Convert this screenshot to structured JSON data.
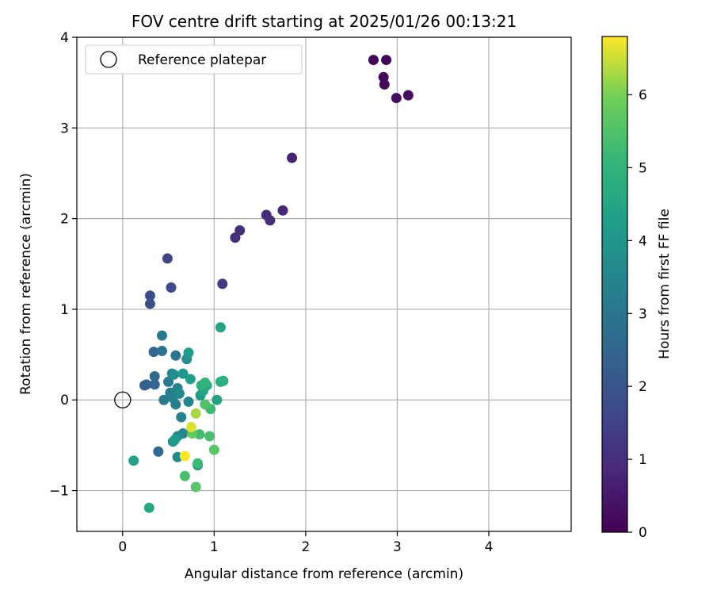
{
  "chart_data": {
    "type": "scatter",
    "title": "FOV centre drift starting at 2025/01/26 00:13:21",
    "xlabel": "Angular distance from reference (arcmin)",
    "ylabel": "Rotation from reference (arcmin)",
    "xlim": [
      -0.5,
      4.9
    ],
    "ylim": [
      -1.45,
      4.0
    ],
    "xticks": [
      0,
      1,
      2,
      3,
      4
    ],
    "yticks": [
      -1,
      0,
      1,
      2,
      3,
      4
    ],
    "xtick_labels": [
      "0",
      "1",
      "2",
      "3",
      "4"
    ],
    "ytick_labels": [
      "−1",
      "0",
      "1",
      "2",
      "3",
      "4"
    ],
    "grid": true,
    "colormap": "viridis",
    "colorbar": {
      "label": "Hours from first FF file",
      "range": [
        0,
        6.8
      ],
      "ticks": [
        0,
        1,
        2,
        3,
        4,
        5,
        6
      ],
      "tick_labels": [
        "0",
        "1",
        "2",
        "3",
        "4",
        "5",
        "6"
      ]
    },
    "legend": {
      "placement": "top-left",
      "entries": [
        {
          "label": "Reference platepar",
          "marker": "hollow-circle"
        }
      ]
    },
    "reference_point": {
      "x": 0,
      "y": 0
    },
    "points": [
      {
        "x": 2.74,
        "y": 3.75,
        "hours": 0.05
      },
      {
        "x": 2.88,
        "y": 3.75,
        "hours": 0.1
      },
      {
        "x": 2.85,
        "y": 3.56,
        "hours": 0.15
      },
      {
        "x": 2.86,
        "y": 3.48,
        "hours": 0.2
      },
      {
        "x": 3.12,
        "y": 3.36,
        "hours": 0.25
      },
      {
        "x": 2.99,
        "y": 3.33,
        "hours": 0.3
      },
      {
        "x": 1.85,
        "y": 2.67,
        "hours": 0.75
      },
      {
        "x": 1.75,
        "y": 2.09,
        "hours": 0.85
      },
      {
        "x": 1.57,
        "y": 2.04,
        "hours": 0.9
      },
      {
        "x": 1.61,
        "y": 1.98,
        "hours": 0.95
      },
      {
        "x": 1.28,
        "y": 1.87,
        "hours": 1.0
      },
      {
        "x": 1.23,
        "y": 1.79,
        "hours": 1.05
      },
      {
        "x": 1.09,
        "y": 1.28,
        "hours": 1.3
      },
      {
        "x": 0.49,
        "y": 1.56,
        "hours": 1.6
      },
      {
        "x": 0.53,
        "y": 1.24,
        "hours": 1.7
      },
      {
        "x": 0.3,
        "y": 1.15,
        "hours": 1.8
      },
      {
        "x": 0.3,
        "y": 1.06,
        "hours": 1.9
      },
      {
        "x": 0.39,
        "y": -0.57,
        "hours": 2.6
      },
      {
        "x": 0.24,
        "y": 0.16,
        "hours": 2.3
      },
      {
        "x": 0.26,
        "y": 0.17,
        "hours": 2.4
      },
      {
        "x": 0.35,
        "y": 0.17,
        "hours": 2.5
      },
      {
        "x": 0.35,
        "y": 0.26,
        "hours": 2.6
      },
      {
        "x": 0.34,
        "y": 0.53,
        "hours": 2.5
      },
      {
        "x": 0.43,
        "y": 0.54,
        "hours": 2.9
      },
      {
        "x": 0.43,
        "y": 0.71,
        "hours": 3.0
      },
      {
        "x": 0.58,
        "y": 0.49,
        "hours": 3.0
      },
      {
        "x": 0.45,
        "y": 0.0,
        "hours": 3.2
      },
      {
        "x": 0.5,
        "y": 0.2,
        "hours": 3.1
      },
      {
        "x": 0.52,
        "y": 0.08,
        "hours": 3.3
      },
      {
        "x": 0.55,
        "y": 0.02,
        "hours": 3.4
      },
      {
        "x": 0.58,
        "y": -0.05,
        "hours": 3.3
      },
      {
        "x": 0.54,
        "y": 0.29,
        "hours": 3.4
      },
      {
        "x": 0.56,
        "y": 0.28,
        "hours": 3.7
      },
      {
        "x": 0.6,
        "y": 0.13,
        "hours": 3.5
      },
      {
        "x": 0.62,
        "y": 0.07,
        "hours": 3.6
      },
      {
        "x": 0.64,
        "y": -0.19,
        "hours": 3.4
      },
      {
        "x": 0.7,
        "y": 0.45,
        "hours": 3.8
      },
      {
        "x": 0.72,
        "y": 0.52,
        "hours": 4.2
      },
      {
        "x": 0.66,
        "y": 0.29,
        "hours": 4.0
      },
      {
        "x": 0.72,
        "y": -0.02,
        "hours": 3.5
      },
      {
        "x": 0.6,
        "y": -0.4,
        "hours": 3.6
      },
      {
        "x": 0.66,
        "y": -0.37,
        "hours": 3.5
      },
      {
        "x": 0.55,
        "y": -0.46,
        "hours": 3.9
      },
      {
        "x": 0.57,
        "y": -0.44,
        "hours": 4.2
      },
      {
        "x": 0.6,
        "y": -0.63,
        "hours": 3.6
      },
      {
        "x": 0.82,
        "y": -0.72,
        "hours": 3.8
      },
      {
        "x": 0.74,
        "y": 0.23,
        "hours": 4.3
      },
      {
        "x": 0.85,
        "y": 0.05,
        "hours": 4.2
      },
      {
        "x": 0.88,
        "y": 0.1,
        "hours": 4.5
      },
      {
        "x": 0.86,
        "y": 0.16,
        "hours": 4.8
      },
      {
        "x": 0.9,
        "y": 0.19,
        "hours": 5.0
      },
      {
        "x": 0.92,
        "y": 0.16,
        "hours": 4.6
      },
      {
        "x": 1.07,
        "y": 0.8,
        "hours": 4.5
      },
      {
        "x": 1.07,
        "y": 0.2,
        "hours": 4.7
      },
      {
        "x": 1.1,
        "y": 0.21,
        "hours": 4.8
      },
      {
        "x": 1.03,
        "y": 0.0,
        "hours": 4.4
      },
      {
        "x": 0.12,
        "y": -0.67,
        "hours": 4.4
      },
      {
        "x": 0.29,
        "y": -1.19,
        "hours": 4.6
      },
      {
        "x": 0.68,
        "y": -0.84,
        "hours": 5.4
      },
      {
        "x": 0.8,
        "y": -0.96,
        "hours": 5.6
      },
      {
        "x": 0.82,
        "y": -0.7,
        "hours": 5.2
      },
      {
        "x": 0.84,
        "y": -0.38,
        "hours": 5.3
      },
      {
        "x": 0.95,
        "y": -0.4,
        "hours": 5.4
      },
      {
        "x": 1.0,
        "y": -0.55,
        "hours": 5.6
      },
      {
        "x": 0.9,
        "y": -0.05,
        "hours": 5.5
      },
      {
        "x": 0.96,
        "y": -0.1,
        "hours": 5.2
      },
      {
        "x": 0.76,
        "y": -0.37,
        "hours": 5.8
      },
      {
        "x": 0.8,
        "y": -0.15,
        "hours": 6.3
      },
      {
        "x": 0.75,
        "y": -0.3,
        "hours": 6.6
      },
      {
        "x": 0.68,
        "y": -0.62,
        "hours": 6.8
      }
    ]
  }
}
